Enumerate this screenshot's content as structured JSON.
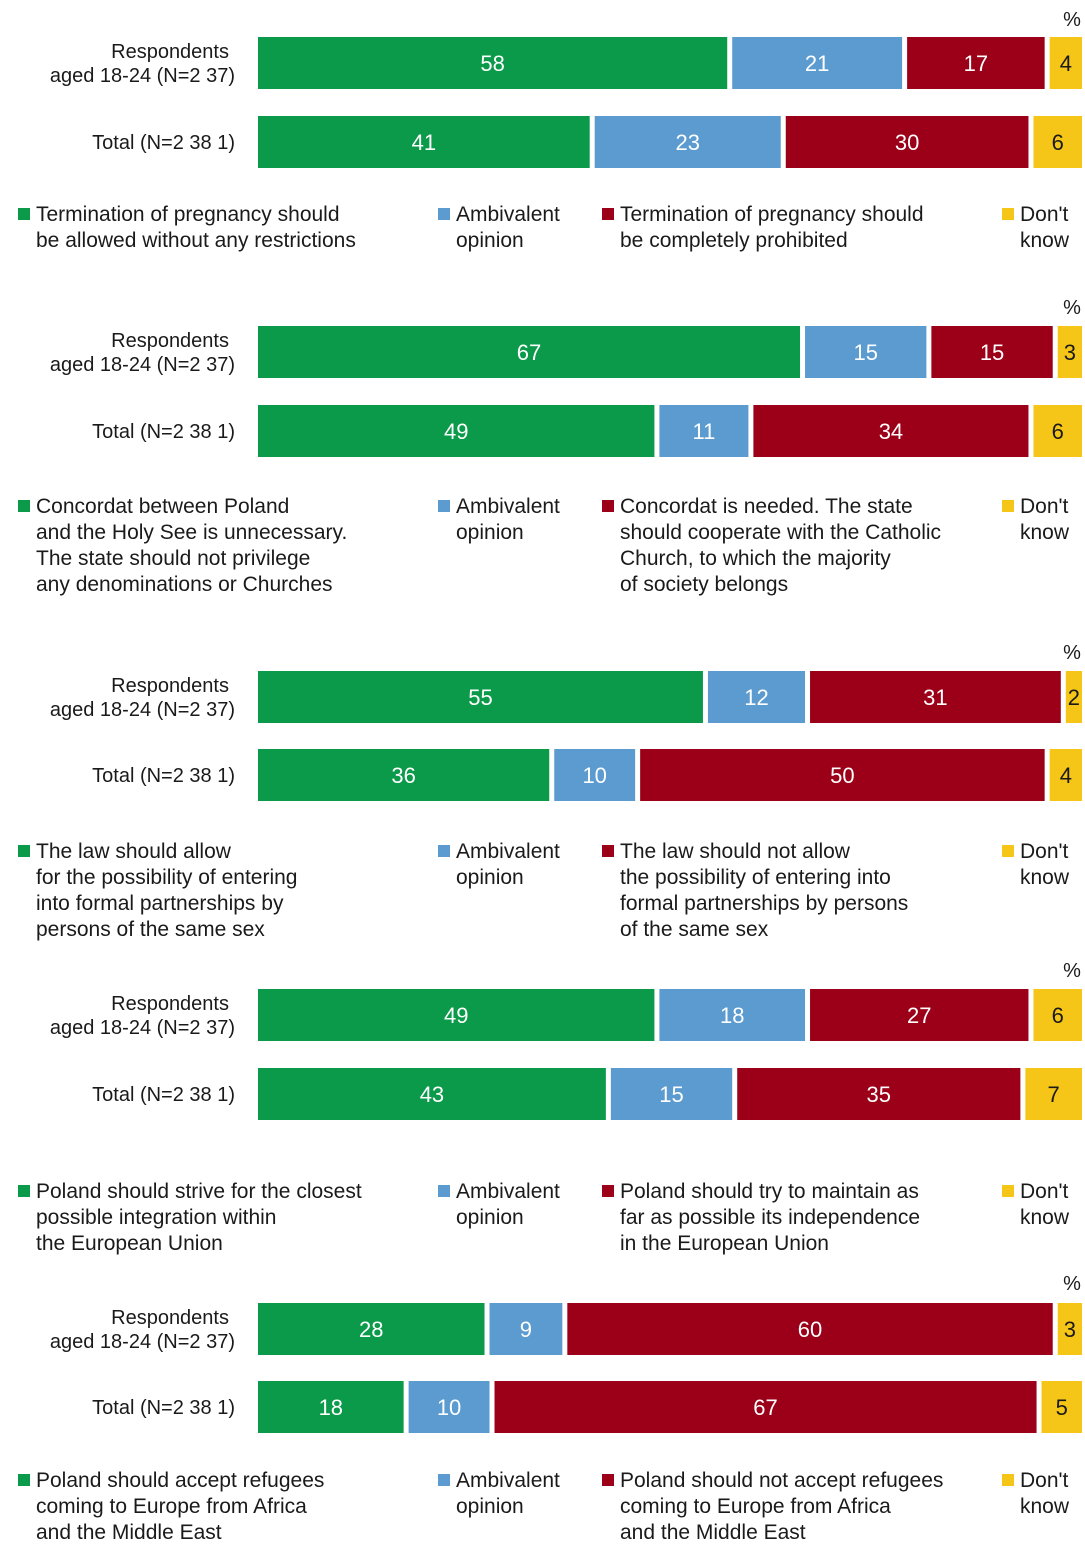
{
  "colors": {
    "green": "#0a9a4a",
    "blue": "#5b9bd0",
    "red": "#9b0018",
    "yellow": "#f5c518"
  },
  "chart_data": [
    {
      "type": "bar",
      "stacked": true,
      "orientation": "horizontal",
      "unit_label": "%",
      "categories": [
        "Respondents\naged 18-24  (N=2 37)",
        "Total (N=2 38 1)"
      ],
      "series": [
        {
          "name": "Termination of pregnancy should\nbe allowed without any restrictions",
          "color": "green",
          "values": [
            58,
            41
          ]
        },
        {
          "name": "Ambivalent\nopinion",
          "color": "blue",
          "values": [
            21,
            23
          ]
        },
        {
          "name": "Termination of pregnancy should\nbe completely prohibited",
          "color": "red",
          "values": [
            17,
            30
          ]
        },
        {
          "name": "Don't\nknow",
          "color": "yellow",
          "values": [
            4,
            6
          ]
        }
      ]
    },
    {
      "type": "bar",
      "stacked": true,
      "orientation": "horizontal",
      "unit_label": "%",
      "categories": [
        "Respondents\naged 18-24  (N=2 37)",
        "Total (N=2 38 1)"
      ],
      "series": [
        {
          "name": "Concordat between Poland\nand the Holy See is unnecessary.\nThe state should not privilege\nany denominations or Churches",
          "color": "green",
          "values": [
            67,
            49
          ]
        },
        {
          "name": "Ambivalent\nopinion",
          "color": "blue",
          "values": [
            15,
            11
          ]
        },
        {
          "name": "Concordat is needed. The state\nshould cooperate with the Catholic\nChurch, to which the majority\nof society belongs",
          "color": "red",
          "values": [
            15,
            34
          ]
        },
        {
          "name": "Don't\nknow",
          "color": "yellow",
          "values": [
            3,
            6
          ]
        }
      ]
    },
    {
      "type": "bar",
      "stacked": true,
      "orientation": "horizontal",
      "unit_label": "%",
      "categories": [
        "Respondents\naged 18-24  (N=2 37)",
        "Total (N=2 38 1)"
      ],
      "series": [
        {
          "name": "The law should allow\nfor the possibility of entering\ninto formal partnerships by\npersons of the same sex",
          "color": "green",
          "values": [
            55,
            36
          ]
        },
        {
          "name": "Ambivalent\nopinion",
          "color": "blue",
          "values": [
            12,
            10
          ]
        },
        {
          "name": "The law should not allow\nthe possibility of entering into\nformal partnerships by persons\nof the same sex",
          "color": "red",
          "values": [
            31,
            50
          ]
        },
        {
          "name": "Don't\nknow",
          "color": "yellow",
          "values": [
            2,
            4
          ]
        }
      ]
    },
    {
      "type": "bar",
      "stacked": true,
      "orientation": "horizontal",
      "unit_label": "%",
      "categories": [
        "Respondents\naged 18-24  (N=2 37)",
        "Total (N=2 38 1)"
      ],
      "series": [
        {
          "name": "Poland should strive for the closest\npossible integration within\nthe European Union",
          "color": "green",
          "values": [
            49,
            43
          ]
        },
        {
          "name": "Ambivalent\nopinion",
          "color": "blue",
          "values": [
            18,
            15
          ]
        },
        {
          "name": "Poland should try to maintain as\nfar as possible its independence\nin the European Union",
          "color": "red",
          "values": [
            27,
            35
          ]
        },
        {
          "name": "Don't\nknow",
          "color": "yellow",
          "values": [
            6,
            7
          ]
        }
      ]
    },
    {
      "type": "bar",
      "stacked": true,
      "orientation": "horizontal",
      "unit_label": "%",
      "categories": [
        "Respondents\naged 18-24  (N=2 37)",
        "Total (N=2 38 1)"
      ],
      "series": [
        {
          "name": "Poland should accept refugees\ncoming to Europe from Africa\nand the Middle East",
          "color": "green",
          "values": [
            28,
            18
          ]
        },
        {
          "name": "Ambivalent\nopinion",
          "color": "blue",
          "values": [
            9,
            10
          ]
        },
        {
          "name": "Poland should not accept refugees\ncoming to Europe from Africa\nand the Middle East",
          "color": "red",
          "values": [
            60,
            67
          ]
        },
        {
          "name": "Don't\nknow",
          "color": "yellow",
          "values": [
            3,
            5
          ]
        }
      ]
    }
  ]
}
